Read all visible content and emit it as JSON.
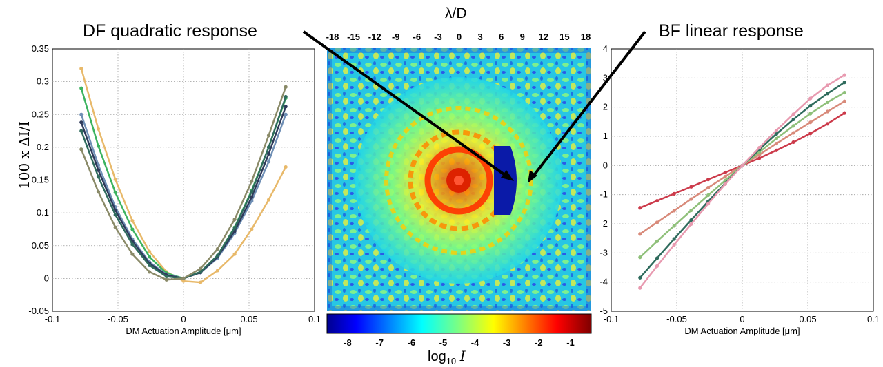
{
  "callouts": {
    "df": "DF quadratic response",
    "bf": "BF linear response"
  },
  "image_panel": {
    "top_axis_label": "λ/D",
    "top_ticks": [
      "-18",
      "-15",
      "-12",
      "-9",
      "-6",
      "-3",
      "0",
      "3",
      "6",
      "9",
      "12",
      "15",
      "18"
    ],
    "colorbar_ticks": [
      "-8",
      "-7",
      "-6",
      "-5",
      "-4",
      "-3",
      "-2",
      "-1"
    ],
    "colorbar_label_prefix": "log",
    "colorbar_label_sub": "10",
    "colorbar_label_var": "I",
    "colormap": "jet"
  },
  "chart_data": [
    {
      "type": "line",
      "name": "DF quadratic response",
      "xlabel": "DM Actuation Amplitude [μm]",
      "ylabel": "100 x ΔI/I",
      "xlim": [
        -0.1,
        0.1
      ],
      "ylim": [
        -0.05,
        0.35
      ],
      "xticks": [
        "-0.1",
        "-0.05",
        "0",
        "0.05",
        "0.1"
      ],
      "yticks": [
        "-0.05",
        "0",
        "0.05",
        "0.1",
        "0.15",
        "0.2",
        "0.25",
        "0.3",
        "0.35"
      ],
      "grid": true,
      "x": [
        -0.078,
        -0.065,
        -0.052,
        -0.039,
        -0.026,
        -0.013,
        0,
        0.013,
        0.026,
        0.039,
        0.052,
        0.065,
        0.078
      ],
      "series": [
        {
          "name": "gold",
          "color": "#e8b96a",
          "values": [
            0.32,
            0.228,
            0.151,
            0.088,
            0.041,
            0.01,
            -0.004,
            -0.006,
            0.012,
            0.037,
            0.075,
            0.12,
            0.17
          ]
        },
        {
          "name": "green",
          "color": "#3cb35f",
          "values": [
            0.29,
            0.202,
            0.131,
            0.075,
            0.033,
            0.008,
            0.0,
            0.01,
            0.035,
            0.078,
            0.134,
            0.2,
            0.275
          ]
        },
        {
          "name": "steelblue",
          "color": "#6f8fb5",
          "values": [
            0.25,
            0.173,
            0.109,
            0.06,
            0.025,
            0.006,
            0.0,
            0.009,
            0.031,
            0.069,
            0.118,
            0.178,
            0.25
          ]
        },
        {
          "name": "navy",
          "color": "#2e3a5a",
          "values": [
            0.238,
            0.165,
            0.104,
            0.057,
            0.023,
            0.005,
            0.0,
            0.009,
            0.033,
            0.072,
            0.124,
            0.19,
            0.262
          ]
        },
        {
          "name": "teal",
          "color": "#2f6b5d",
          "values": [
            0.225,
            0.155,
            0.097,
            0.052,
            0.02,
            0.003,
            0.0,
            0.01,
            0.035,
            0.077,
            0.132,
            0.2,
            0.277
          ]
        },
        {
          "name": "olive",
          "color": "#8a8a68",
          "values": [
            0.197,
            0.132,
            0.078,
            0.037,
            0.01,
            -0.002,
            0.0,
            0.015,
            0.045,
            0.09,
            0.148,
            0.218,
            0.292
          ]
        }
      ]
    },
    {
      "type": "line",
      "name": "BF linear response",
      "xlabel": "DM Actuation Amplitude [μm]",
      "ylabel": "",
      "xlim": [
        -0.1,
        0.1
      ],
      "ylim": [
        -5,
        4
      ],
      "xticks": [
        "-0.1",
        "-0.05",
        "0",
        "0.05",
        "0.1"
      ],
      "yticks": [
        "-5",
        "-4",
        "-3",
        "-2",
        "-1",
        "0",
        "1",
        "2",
        "3",
        "4"
      ],
      "grid": true,
      "x": [
        -0.078,
        -0.065,
        -0.052,
        -0.039,
        -0.026,
        -0.013,
        0,
        0.013,
        0.026,
        0.039,
        0.052,
        0.065,
        0.078
      ],
      "series": [
        {
          "name": "red",
          "color": "#cc3a4a",
          "values": [
            -1.45,
            -1.21,
            -0.97,
            -0.73,
            -0.48,
            -0.24,
            0,
            0.25,
            0.52,
            0.8,
            1.1,
            1.43,
            1.8
          ]
        },
        {
          "name": "salmon",
          "color": "#d88a7a",
          "values": [
            -2.35,
            -1.95,
            -1.55,
            -1.15,
            -0.76,
            -0.38,
            0,
            0.37,
            0.75,
            1.12,
            1.48,
            1.85,
            2.2
          ]
        },
        {
          "name": "lightgreen",
          "color": "#8fc07a",
          "values": [
            -3.15,
            -2.6,
            -2.07,
            -1.54,
            -1.02,
            -0.51,
            0,
            0.46,
            0.92,
            1.36,
            1.78,
            2.17,
            2.5
          ]
        },
        {
          "name": "darkteal",
          "color": "#2f6b5d",
          "values": [
            -3.85,
            -3.18,
            -2.52,
            -1.87,
            -1.23,
            -0.61,
            0,
            0.55,
            1.08,
            1.58,
            2.05,
            2.47,
            2.85
          ]
        },
        {
          "name": "pink",
          "color": "#e89ab0",
          "values": [
            -4.2,
            -3.45,
            -2.72,
            -2.01,
            -1.31,
            -0.64,
            0,
            0.61,
            1.2,
            1.76,
            2.3,
            2.75,
            3.1
          ]
        }
      ]
    }
  ]
}
